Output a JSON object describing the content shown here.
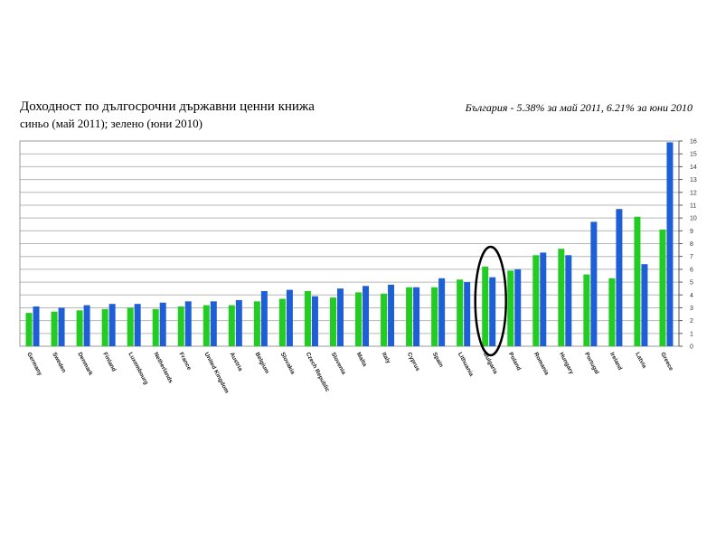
{
  "title": "Доходност по дългосрочни държавни ценни книжа",
  "subtitle": "синьо (май 2011); зелено (юни 2010)",
  "note": "България - 5.38% за май 2011, 6.21% за юни 2010",
  "chart_data": {
    "type": "bar",
    "categories": [
      "Germany",
      "Sweden",
      "Denmark",
      "Finland",
      "Luxembourg",
      "Netherlands",
      "France",
      "United Kingdom",
      "Austria",
      "Belgium",
      "Slovakia",
      "Czech Republic",
      "Slovenia",
      "Malta",
      "Italy",
      "Cyprus",
      "Spain",
      "Lithuania",
      "Bulgaria",
      "Poland",
      "Romania",
      "Hungary",
      "Portugal",
      "Ireland",
      "Latvia",
      "Greece"
    ],
    "series": [
      {
        "color": "#22cc22",
        "values": [
          2.6,
          2.7,
          2.8,
          2.9,
          3.0,
          2.9,
          3.1,
          3.2,
          3.2,
          3.5,
          3.7,
          4.3,
          3.8,
          4.2,
          4.1,
          4.6,
          4.6,
          5.2,
          6.21,
          5.9,
          7.1,
          7.6,
          5.6,
          5.3,
          10.1,
          9.1
        ]
      },
      {
        "color": "#1f5fd6",
        "values": [
          3.1,
          3.0,
          3.2,
          3.3,
          3.3,
          3.4,
          3.5,
          3.5,
          3.6,
          4.3,
          4.4,
          3.9,
          4.5,
          4.7,
          4.8,
          4.6,
          5.3,
          5.0,
          5.38,
          6.0,
          7.3,
          7.1,
          9.7,
          10.7,
          6.4,
          15.9
        ]
      }
    ],
    "ylim": [
      0,
      16
    ],
    "yticks": [
      0,
      1,
      2,
      3,
      4,
      5,
      6,
      7,
      8,
      9,
      10,
      11,
      12,
      13,
      14,
      15,
      16
    ],
    "grid": true,
    "highlight": "Bulgaria"
  }
}
